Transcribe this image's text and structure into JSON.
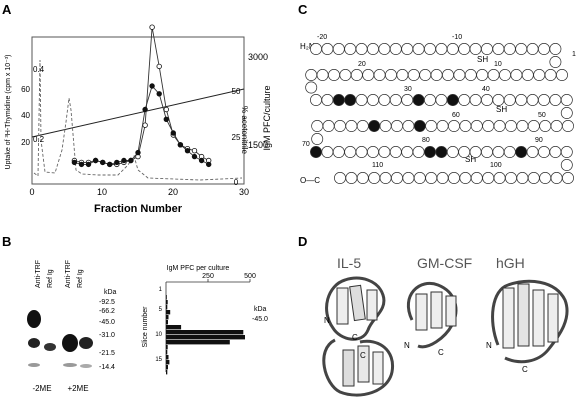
{
  "panels": {
    "a": {
      "letter": "A",
      "xlabel": "Fraction Number",
      "left_axis_label": "Uptake of ³H-Thymidine (cpm x 10⁻³)",
      "right_axis_label": "IgM PFC/culture",
      "acetonitrile_label": "% acetonitrile",
      "xticks": [
        "0",
        "10",
        "20",
        "30"
      ],
      "left_ticks": [
        "20",
        "40",
        "60"
      ],
      "right_ticks": [
        "1500",
        "3000"
      ],
      "acn_ticks": [
        "0",
        "25",
        "50"
      ],
      "absorbance_ticks": [
        "0.2",
        "0.4"
      ]
    },
    "b": {
      "letter": "B",
      "lane_labels": [
        "Anti-TRF",
        "Ref Ig",
        "Anti-TRF",
        "Ref Ig"
      ],
      "kda_header": "kDa",
      "markers": [
        "-92.5",
        "-66.2",
        "-45.0",
        "-31.0",
        "-21.5",
        "-14.4"
      ],
      "conditions": [
        "-2ME",
        "+2ME"
      ],
      "bar_title": "IgM PFC per culture",
      "bar_ticks": [
        "250",
        "500"
      ],
      "slice_label": "Slice number",
      "slice_ticks": [
        "1",
        "5",
        "10",
        "15"
      ],
      "bar_kda_header": "kDa",
      "bar_kda_marker": "-45.0"
    },
    "c": {
      "letter": "C",
      "sh_label": "SH",
      "n_terminal": "H₂N",
      "c_terminal": "O—C",
      "position_labels": [
        "-20",
        "-10",
        "1",
        "20",
        "10",
        "30",
        "40",
        "50",
        "60",
        "70",
        "80",
        "90",
        "100",
        "110"
      ]
    },
    "d": {
      "letter": "D",
      "structures": [
        "IL-5",
        "GM-CSF",
        "hGH"
      ],
      "n_label": "N",
      "c_label": "C"
    }
  },
  "chart_data": [
    {
      "type": "line",
      "title": "",
      "xlabel": "Fraction Number",
      "ylabel": "Uptake of ³H-Thymidine (cpm x 10⁻³)",
      "xlim": [
        0,
        30
      ],
      "ylim": [
        0,
        75
      ],
      "series": [
        {
          "x": [
            6,
            7,
            8,
            9,
            10,
            11,
            12,
            13,
            14,
            15,
            16,
            17,
            18,
            19,
            20,
            21,
            22,
            23,
            24,
            25
          ],
          "values": [
            12,
            11,
            11,
            12,
            11,
            10,
            10,
            11,
            12,
            14,
            30,
            80,
            60,
            38,
            25,
            20,
            18,
            17,
            14,
            12
          ]
        },
        {
          "x": [
            6,
            7,
            8,
            9,
            10,
            11,
            12,
            13,
            14,
            15,
            16,
            17,
            18,
            19,
            20,
            21,
            22,
            23,
            24,
            25
          ],
          "values": [
            11,
            10,
            10,
            12,
            11,
            10,
            11,
            12,
            12,
            16,
            38,
            50,
            46,
            33,
            26,
            20,
            17,
            14,
            12,
            10
          ]
        }
      ]
    },
    {
      "type": "bar",
      "title": "IgM PFC per culture",
      "ylabel": "Slice number",
      "xlim": [
        0,
        500
      ],
      "categories": [
        "1",
        "2",
        "3",
        "4",
        "5",
        "6",
        "7",
        "8",
        "9",
        "10",
        "11",
        "12",
        "13",
        "14",
        "15",
        "16",
        "17",
        "18"
      ],
      "values": [
        0,
        0,
        5,
        10,
        8,
        25,
        15,
        12,
        90,
        460,
        470,
        380,
        10,
        8,
        15,
        20,
        12,
        8
      ]
    }
  ]
}
